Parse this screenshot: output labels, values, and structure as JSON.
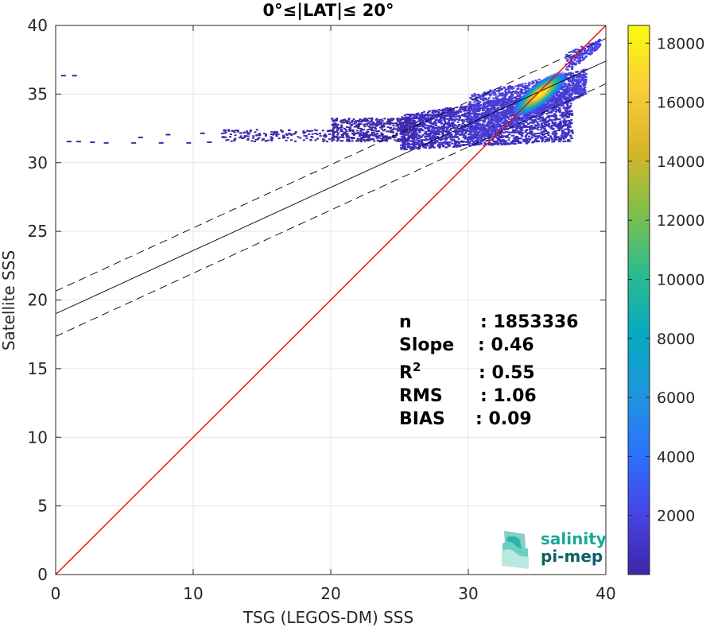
{
  "chart_data": {
    "type": "heatmap",
    "title": "0°≤|LAT|≤ 20°",
    "xlabel": "TSG (LEGOS-DM) SSS",
    "ylabel": "Satellite SSS",
    "xlim": [
      0,
      40
    ],
    "ylim": [
      0,
      40
    ],
    "xticks": [
      "0",
      "10",
      "20",
      "30",
      "40"
    ],
    "yticks": [
      "0",
      "5",
      "10",
      "15",
      "20",
      "25",
      "30",
      "35",
      "40"
    ],
    "grid": true,
    "identity_line": {
      "color": "#ff0000",
      "x": [
        0,
        40
      ],
      "y": [
        0,
        40
      ]
    },
    "regression": {
      "slope": 0.46,
      "intercept": 19.0,
      "offset": 1.65
    },
    "density_core": {
      "x": 35.2,
      "y": 35.0
    },
    "colorbar": {
      "min": 0,
      "max": 18600,
      "ticks": [
        "2000",
        "4000",
        "6000",
        "8000",
        "10000",
        "12000",
        "14000",
        "16000",
        "18000"
      ],
      "colormap": [
        "#3e26a8",
        "#4743e4",
        "#2c72fc",
        "#1e97db",
        "#06abc0",
        "#2dbb8d",
        "#80bf4b",
        "#d6b528",
        "#fbcc39",
        "#f9fb0e"
      ]
    },
    "stats": [
      {
        "label": "n",
        "sup": "",
        "value": ": 1853336"
      },
      {
        "label": "Slope",
        "sup": "",
        "value": ": 0.46"
      },
      {
        "label": "R",
        "sup": "2",
        "value": ": 0.55"
      },
      {
        "label": "RMS",
        "sup": "",
        "value": ": 1.06"
      },
      {
        "label": "BIAS",
        "sup": "",
        "value": ": 0.09"
      }
    ]
  },
  "logo": {
    "line1": "salinity",
    "line2": "pi-mep",
    "color1": "#1aa89a",
    "color2": "#0f5f66"
  }
}
